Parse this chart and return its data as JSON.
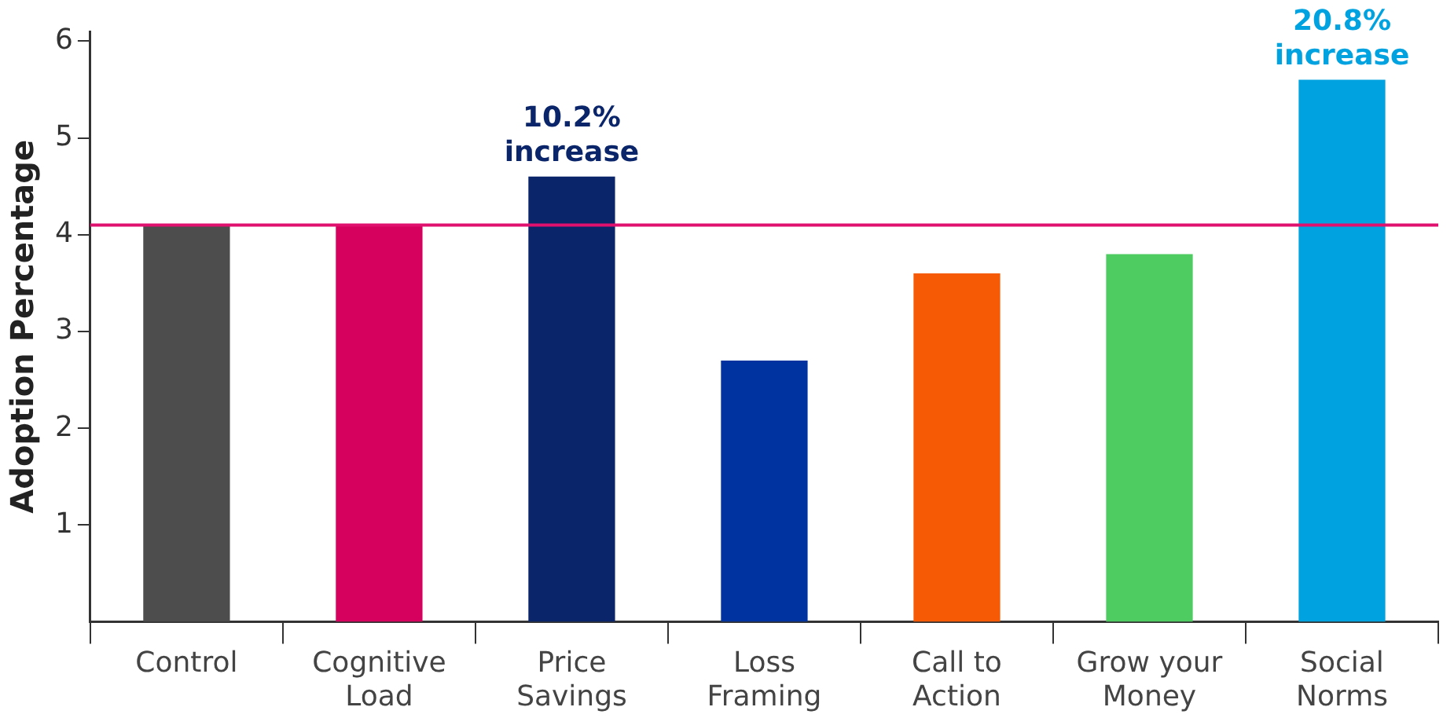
{
  "chart_data": {
    "type": "bar",
    "ylabel": "Adoption Percentage",
    "categories": [
      "Control",
      "Cognitive Load",
      "Price Savings",
      "Loss Framing",
      "Call to Action",
      "Grow your Money",
      "Social Norms"
    ],
    "values": [
      4.1,
      4.1,
      4.6,
      2.7,
      3.6,
      3.8,
      5.6
    ],
    "colors": [
      "#4d4d4d",
      "#d6005f",
      "#0a2569",
      "#0033a0",
      "#f75a05",
      "#4fcc61",
      "#00a3e0"
    ],
    "ylim": [
      0,
      6.1
    ],
    "yticks": [
      1,
      2,
      3,
      4,
      5,
      6
    ],
    "grid": false,
    "legend": false,
    "ref_lines": [
      {
        "axis": "y",
        "value": 4.1,
        "color": "#e0106f"
      }
    ],
    "annotations": [
      {
        "text": "10.2% increase",
        "x": "Price Savings",
        "y": 4.6
      },
      {
        "text": "20.8% increase",
        "x": "Social Norms",
        "y": 5.6
      }
    ]
  }
}
